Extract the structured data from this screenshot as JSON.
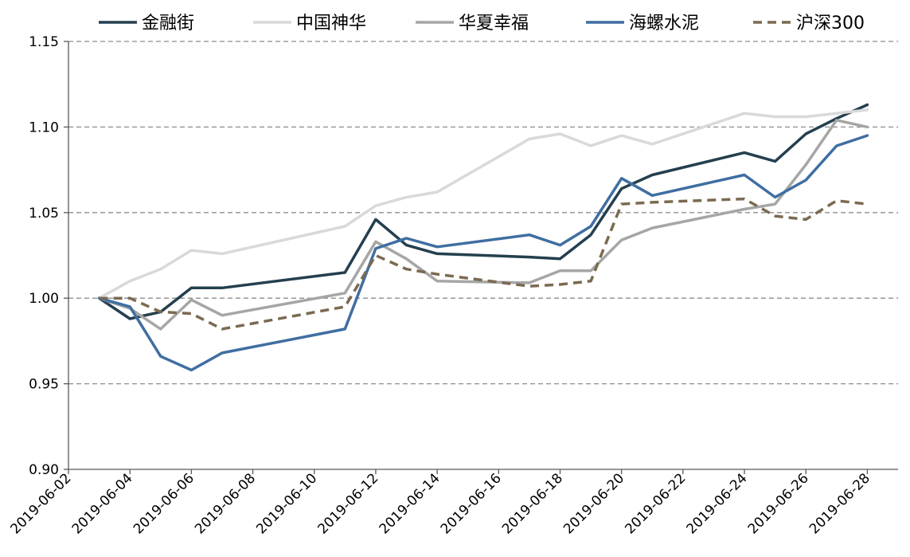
{
  "chart_data": {
    "type": "line",
    "x": [
      "2019-06-03",
      "2019-06-04",
      "2019-06-05",
      "2019-06-06",
      "2019-06-07",
      "2019-06-11",
      "2019-06-12",
      "2019-06-13",
      "2019-06-14",
      "2019-06-17",
      "2019-06-18",
      "2019-06-19",
      "2019-06-20",
      "2019-06-21",
      "2019-06-24",
      "2019-06-25",
      "2019-06-26",
      "2019-06-27",
      "2019-06-28"
    ],
    "x_ticks": [
      "2019-06-02",
      "2019-06-04",
      "2019-06-06",
      "2019-06-08",
      "2019-06-10",
      "2019-06-12",
      "2019-06-14",
      "2019-06-16",
      "2019-06-18",
      "2019-06-20",
      "2019-06-22",
      "2019-06-24",
      "2019-06-26",
      "2019-06-28"
    ],
    "x_range": [
      "2019-06-02",
      "2019-06-29"
    ],
    "y_ticks": [
      "0.90",
      "0.95",
      "1.00",
      "1.05",
      "1.10",
      "1.15"
    ],
    "ylim": [
      0.9,
      1.15
    ],
    "grid": "horizontal-dashed",
    "legend_position": "top",
    "series": [
      {
        "name": "金融街",
        "color": "#243f4f",
        "dash": "solid",
        "values": [
          1.0,
          0.988,
          0.992,
          1.006,
          1.006,
          1.015,
          1.046,
          1.031,
          1.026,
          1.024,
          1.023,
          1.037,
          1.064,
          1.072,
          1.085,
          1.08,
          1.096,
          1.105,
          1.113
        ]
      },
      {
        "name": "中国神华",
        "color": "#d9d9d9",
        "dash": "solid",
        "values": [
          1.0,
          1.01,
          1.017,
          1.028,
          1.026,
          1.042,
          1.054,
          1.059,
          1.062,
          1.093,
          1.096,
          1.089,
          1.095,
          1.09,
          1.108,
          1.106,
          1.106,
          1.108,
          1.11
        ]
      },
      {
        "name": "华夏幸福",
        "color": "#a6a6a6",
        "dash": "solid",
        "values": [
          1.0,
          0.994,
          0.982,
          0.999,
          0.99,
          1.003,
          1.033,
          1.023,
          1.01,
          1.009,
          1.016,
          1.016,
          1.034,
          1.041,
          1.052,
          1.055,
          1.078,
          1.104,
          1.1
        ]
      },
      {
        "name": "海螺水泥",
        "color": "#3f6ea1",
        "dash": "solid",
        "values": [
          1.0,
          0.995,
          0.966,
          0.958,
          0.968,
          0.982,
          1.029,
          1.035,
          1.03,
          1.037,
          1.031,
          1.042,
          1.07,
          1.06,
          1.072,
          1.059,
          1.069,
          1.089,
          1.095
        ]
      },
      {
        "name": "沪深300",
        "color": "#7a6a50",
        "dash": "dashed",
        "values": [
          1.0,
          1.0,
          0.992,
          0.991,
          0.982,
          0.995,
          1.025,
          1.017,
          1.014,
          1.007,
          1.008,
          1.01,
          1.055,
          1.056,
          1.058,
          1.048,
          1.046,
          1.057,
          1.055
        ]
      }
    ]
  }
}
